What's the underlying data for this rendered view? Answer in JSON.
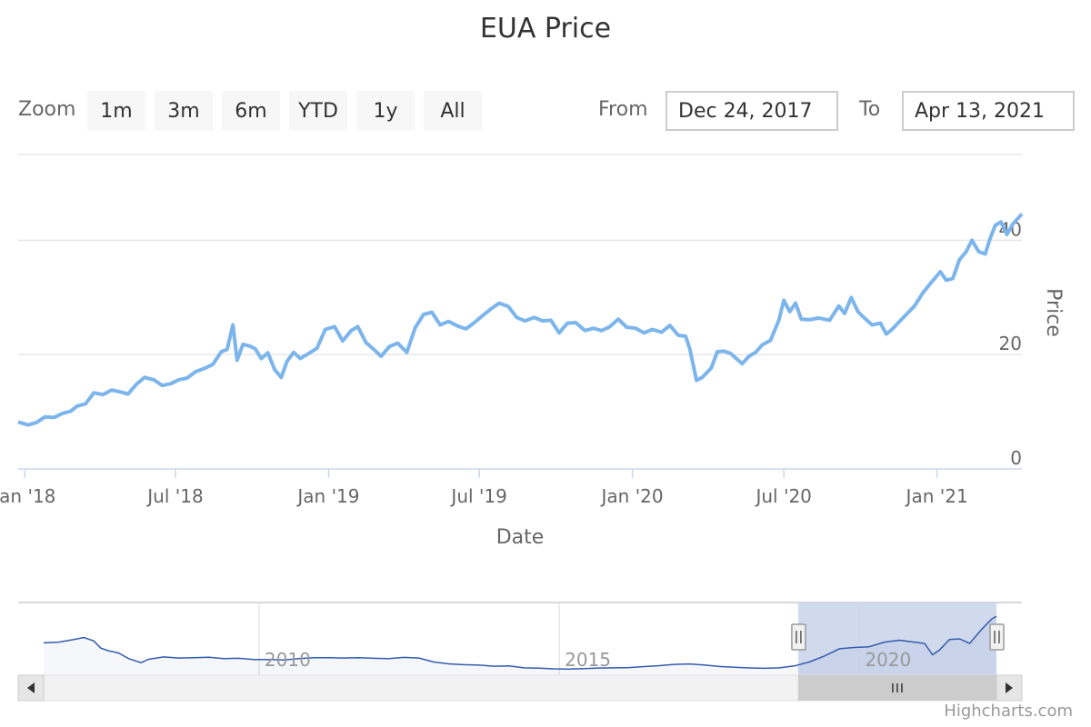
{
  "range_selector": {
    "zoom_label": "Zoom",
    "buttons": [
      "1m",
      "3m",
      "6m",
      "YTD",
      "1y",
      "All"
    ],
    "from_label": "From",
    "from_value": "Dec 24, 2017",
    "to_label": "To",
    "to_value": "Apr 13, 2021"
  },
  "credits": "Highcharts.com",
  "colors": {
    "main_line": "#7cb5ec",
    "navigator_line": "#335cad",
    "navigator_mask": "#ccd6eb",
    "grid": "#e6e6e6",
    "axis_line": "#ccd6eb"
  },
  "chart_data": {
    "type": "line",
    "title": "EUA Price",
    "xlabel": "Date",
    "ylabel": "Price",
    "ylim": [
      0,
      55
    ],
    "xlim": [
      "2017-12-24",
      "2021-04-13"
    ],
    "yticks": [
      0,
      20,
      40
    ],
    "xticks": [
      {
        "date": "2018-01-01",
        "label": "Jan '18"
      },
      {
        "date": "2018-07-01",
        "label": "Jul '18"
      },
      {
        "date": "2019-01-01",
        "label": "Jan '19"
      },
      {
        "date": "2019-07-01",
        "label": "Jul '19"
      },
      {
        "date": "2020-01-01",
        "label": "Jan '20"
      },
      {
        "date": "2020-07-01",
        "label": "Jul '20"
      },
      {
        "date": "2021-01-01",
        "label": "Jan '21"
      }
    ],
    "grid": true,
    "legend": "none",
    "series": [
      {
        "points": [
          [
            "2017-12-24",
            8.2
          ],
          [
            "2018-01-05",
            7.7
          ],
          [
            "2018-01-15",
            8.1
          ],
          [
            "2018-01-25",
            9.1
          ],
          [
            "2018-02-05",
            9.0
          ],
          [
            "2018-02-15",
            9.7
          ],
          [
            "2018-02-25",
            10.1
          ],
          [
            "2018-03-05",
            11.0
          ],
          [
            "2018-03-15",
            11.4
          ],
          [
            "2018-03-25",
            13.3
          ],
          [
            "2018-04-05",
            13.0
          ],
          [
            "2018-04-15",
            13.8
          ],
          [
            "2018-04-25",
            13.5
          ],
          [
            "2018-05-05",
            13.1
          ],
          [
            "2018-05-15",
            14.8
          ],
          [
            "2018-05-25",
            16.0
          ],
          [
            "2018-06-05",
            15.6
          ],
          [
            "2018-06-15",
            14.6
          ],
          [
            "2018-06-25",
            14.9
          ],
          [
            "2018-07-05",
            15.6
          ],
          [
            "2018-07-15",
            15.9
          ],
          [
            "2018-07-25",
            17.0
          ],
          [
            "2018-08-05",
            17.6
          ],
          [
            "2018-08-15",
            18.3
          ],
          [
            "2018-08-25",
            20.5
          ],
          [
            "2018-09-01",
            20.9
          ],
          [
            "2018-09-08",
            25.2
          ],
          [
            "2018-09-13",
            19.0
          ],
          [
            "2018-09-20",
            21.8
          ],
          [
            "2018-09-28",
            21.5
          ],
          [
            "2018-10-05",
            21.0
          ],
          [
            "2018-10-12",
            19.3
          ],
          [
            "2018-10-20",
            20.3
          ],
          [
            "2018-10-28",
            17.4
          ],
          [
            "2018-11-05",
            16.0
          ],
          [
            "2018-11-12",
            18.8
          ],
          [
            "2018-11-20",
            20.4
          ],
          [
            "2018-11-28",
            19.3
          ],
          [
            "2018-12-08",
            20.2
          ],
          [
            "2018-12-18",
            21.1
          ],
          [
            "2018-12-28",
            24.4
          ],
          [
            "2019-01-08",
            24.9
          ],
          [
            "2019-01-18",
            22.4
          ],
          [
            "2019-01-28",
            24.2
          ],
          [
            "2019-02-05",
            24.9
          ],
          [
            "2019-02-15",
            22.1
          ],
          [
            "2019-02-25",
            20.8
          ],
          [
            "2019-03-05",
            19.7
          ],
          [
            "2019-03-15",
            21.4
          ],
          [
            "2019-03-25",
            22.0
          ],
          [
            "2019-04-05",
            20.4
          ],
          [
            "2019-04-15",
            24.7
          ],
          [
            "2019-04-25",
            27.0
          ],
          [
            "2019-05-05",
            27.4
          ],
          [
            "2019-05-15",
            25.2
          ],
          [
            "2019-05-25",
            25.8
          ],
          [
            "2019-06-05",
            25.0
          ],
          [
            "2019-06-15",
            24.5
          ],
          [
            "2019-06-25",
            25.6
          ],
          [
            "2019-07-05",
            26.8
          ],
          [
            "2019-07-15",
            28.0
          ],
          [
            "2019-07-25",
            29.0
          ],
          [
            "2019-08-05",
            28.4
          ],
          [
            "2019-08-15",
            26.5
          ],
          [
            "2019-08-25",
            25.9
          ],
          [
            "2019-09-05",
            26.5
          ],
          [
            "2019-09-15",
            25.9
          ],
          [
            "2019-09-25",
            26.0
          ],
          [
            "2019-10-05",
            23.8
          ],
          [
            "2019-10-15",
            25.5
          ],
          [
            "2019-10-25",
            25.6
          ],
          [
            "2019-11-05",
            24.2
          ],
          [
            "2019-11-15",
            24.6
          ],
          [
            "2019-11-25",
            24.2
          ],
          [
            "2019-12-05",
            24.9
          ],
          [
            "2019-12-15",
            26.2
          ],
          [
            "2019-12-25",
            24.8
          ],
          [
            "2020-01-05",
            24.6
          ],
          [
            "2020-01-15",
            23.8
          ],
          [
            "2020-01-25",
            24.4
          ],
          [
            "2020-02-05",
            23.9
          ],
          [
            "2020-02-15",
            25.1
          ],
          [
            "2020-02-25",
            23.4
          ],
          [
            "2020-03-05",
            23.2
          ],
          [
            "2020-03-10",
            21.0
          ],
          [
            "2020-03-18",
            15.5
          ],
          [
            "2020-03-25",
            16.0
          ],
          [
            "2020-04-05",
            17.7
          ],
          [
            "2020-04-12",
            20.5
          ],
          [
            "2020-04-20",
            20.6
          ],
          [
            "2020-04-28",
            20.2
          ],
          [
            "2020-05-05",
            19.3
          ],
          [
            "2020-05-12",
            18.4
          ],
          [
            "2020-05-20",
            19.7
          ],
          [
            "2020-05-28",
            20.4
          ],
          [
            "2020-06-05",
            21.7
          ],
          [
            "2020-06-15",
            22.5
          ],
          [
            "2020-06-25",
            26.0
          ],
          [
            "2020-07-01",
            29.5
          ],
          [
            "2020-07-08",
            27.5
          ],
          [
            "2020-07-15",
            29.0
          ],
          [
            "2020-07-22",
            26.2
          ],
          [
            "2020-08-01",
            26.1
          ],
          [
            "2020-08-12",
            26.4
          ],
          [
            "2020-08-25",
            26.0
          ],
          [
            "2020-09-05",
            28.5
          ],
          [
            "2020-09-12",
            27.2
          ],
          [
            "2020-09-20",
            30.0
          ],
          [
            "2020-09-28",
            27.5
          ],
          [
            "2020-10-05",
            26.5
          ],
          [
            "2020-10-15",
            25.2
          ],
          [
            "2020-10-25",
            25.5
          ],
          [
            "2020-11-01",
            23.6
          ],
          [
            "2020-11-08",
            24.4
          ],
          [
            "2020-11-15",
            25.5
          ],
          [
            "2020-11-25",
            27.0
          ],
          [
            "2020-12-05",
            28.5
          ],
          [
            "2020-12-15",
            30.8
          ],
          [
            "2020-12-25",
            32.6
          ],
          [
            "2021-01-05",
            34.5
          ],
          [
            "2021-01-12",
            33.0
          ],
          [
            "2021-01-20",
            33.3
          ],
          [
            "2021-01-28",
            36.6
          ],
          [
            "2021-02-05",
            38.0
          ],
          [
            "2021-02-12",
            40.0
          ],
          [
            "2021-02-20",
            38.0
          ],
          [
            "2021-02-28",
            37.6
          ],
          [
            "2021-03-05",
            40.0
          ],
          [
            "2021-03-12",
            42.6
          ],
          [
            "2021-03-19",
            43.2
          ],
          [
            "2021-03-26",
            41.0
          ],
          [
            "2021-04-02",
            42.8
          ],
          [
            "2021-04-13",
            44.6
          ]
        ]
      }
    ],
    "navigator": {
      "xlim": [
        "2005-06-01",
        "2021-04-13"
      ],
      "ylim": [
        0,
        55
      ],
      "selected_range": [
        "2017-12-24",
        "2021-04-13"
      ],
      "xticks": [
        {
          "date": "2009-01-01",
          "label": "2010"
        },
        {
          "date": "2014-01-01",
          "label": "2015"
        },
        {
          "date": "2019-01-01",
          "label": "2020"
        }
      ],
      "points": [
        [
          "2005-06-01",
          24.5
        ],
        [
          "2005-09-01",
          25.0
        ],
        [
          "2005-12-01",
          27.0
        ],
        [
          "2006-02-01",
          28.5
        ],
        [
          "2006-04-01",
          26.0
        ],
        [
          "2006-05-15",
          20.5
        ],
        [
          "2006-07-01",
          18.5
        ],
        [
          "2006-09-01",
          16.8
        ],
        [
          "2006-11-01",
          12.5
        ],
        [
          "2007-01-15",
          9.5
        ],
        [
          "2007-03-01",
          12.0
        ],
        [
          "2007-06-01",
          13.8
        ],
        [
          "2007-09-01",
          13.0
        ],
        [
          "2007-12-01",
          13.2
        ],
        [
          "2008-03-01",
          13.6
        ],
        [
          "2008-06-01",
          12.6
        ],
        [
          "2008-09-01",
          12.8
        ],
        [
          "2008-12-01",
          11.8
        ],
        [
          "2009-03-01",
          11.8
        ],
        [
          "2009-06-01",
          11.5
        ],
        [
          "2009-09-01",
          12.5
        ],
        [
          "2009-12-01",
          13.2
        ],
        [
          "2010-03-01",
          13.3
        ],
        [
          "2010-06-01",
          13.0
        ],
        [
          "2010-09-01",
          13.2
        ],
        [
          "2010-12-01",
          12.8
        ],
        [
          "2011-03-01",
          12.6
        ],
        [
          "2011-06-01",
          13.5
        ],
        [
          "2011-09-01",
          13.0
        ],
        [
          "2011-12-01",
          10.0
        ],
        [
          "2012-03-01",
          8.6
        ],
        [
          "2012-06-01",
          8.0
        ],
        [
          "2012-09-01",
          7.6
        ],
        [
          "2012-12-01",
          6.8
        ],
        [
          "2013-03-01",
          7.0
        ],
        [
          "2013-06-01",
          5.6
        ],
        [
          "2013-09-01",
          5.3
        ],
        [
          "2013-12-01",
          4.8
        ],
        [
          "2014-03-01",
          4.6
        ],
        [
          "2014-06-01",
          5.0
        ],
        [
          "2014-09-01",
          5.4
        ],
        [
          "2014-12-01",
          5.6
        ],
        [
          "2015-03-01",
          5.8
        ],
        [
          "2015-06-01",
          6.5
        ],
        [
          "2015-09-01",
          7.2
        ],
        [
          "2015-12-01",
          8.2
        ],
        [
          "2016-03-01",
          8.5
        ],
        [
          "2016-06-01",
          7.8
        ],
        [
          "2016-09-01",
          6.6
        ],
        [
          "2016-12-01",
          6.0
        ],
        [
          "2017-03-01",
          5.5
        ],
        [
          "2017-06-01",
          5.2
        ],
        [
          "2017-09-01",
          5.6
        ],
        [
          "2017-12-01",
          7.0
        ],
        [
          "2018-03-01",
          10.0
        ],
        [
          "2018-06-01",
          14.5
        ],
        [
          "2018-09-01",
          20.0
        ],
        [
          "2018-12-01",
          21.0
        ],
        [
          "2019-03-01",
          21.5
        ],
        [
          "2019-06-01",
          25.0
        ],
        [
          "2019-09-01",
          26.5
        ],
        [
          "2019-12-01",
          25.0
        ],
        [
          "2020-02-01",
          24.0
        ],
        [
          "2020-03-20",
          15.5
        ],
        [
          "2020-05-01",
          19.0
        ],
        [
          "2020-07-01",
          27.0
        ],
        [
          "2020-09-01",
          27.5
        ],
        [
          "2020-11-01",
          24.0
        ],
        [
          "2021-01-01",
          33.0
        ],
        [
          "2021-02-15",
          39.0
        ],
        [
          "2021-03-15",
          42.5
        ],
        [
          "2021-04-13",
          44.6
        ]
      ]
    }
  }
}
